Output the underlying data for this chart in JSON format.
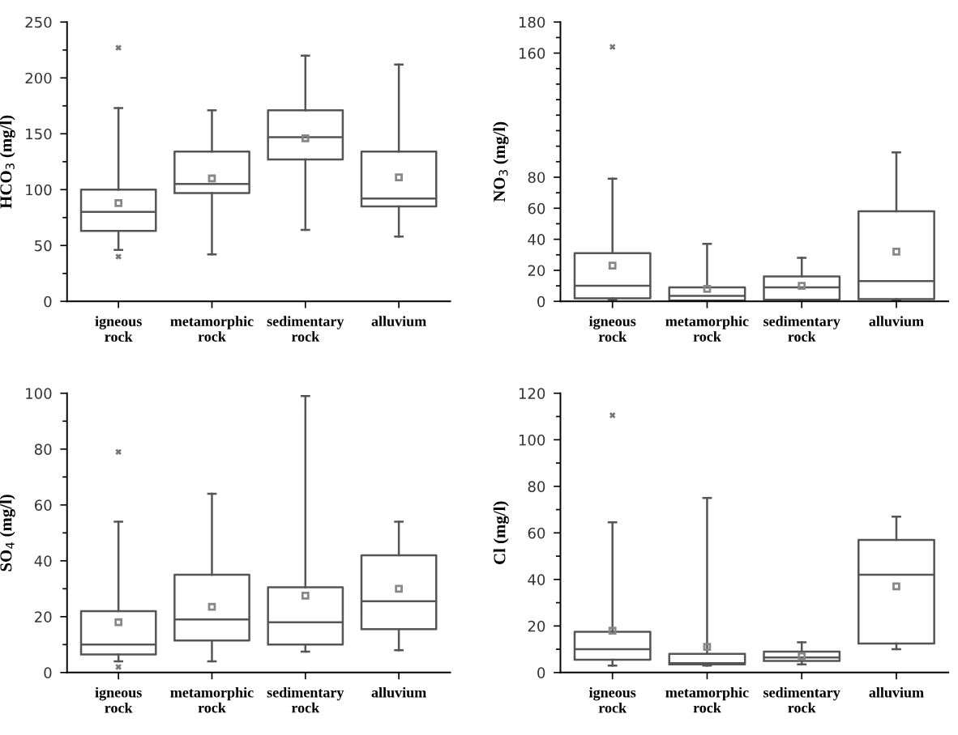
{
  "chart_data": [
    {
      "type": "box",
      "ylabel": "HCO$_{3}$ (mg/l)",
      "categories": [
        "igneous\nrock",
        "metamorphic\nrock",
        "sedimentary\nrock",
        "alluvium"
      ],
      "ylim": [
        0,
        250
      ],
      "yticks": [
        0,
        50,
        100,
        150,
        200,
        250
      ],
      "grid": false,
      "legend": false,
      "color": "#555555",
      "boxes": [
        {
          "low": 46,
          "q1": 63,
          "median": 80,
          "q3": 100,
          "high": 173,
          "mean": 88,
          "outliers": [
            227,
            40
          ]
        },
        {
          "low": 42,
          "q1": 97,
          "median": 105,
          "q3": 134,
          "high": 171,
          "mean": 110
        },
        {
          "low": 64,
          "q1": 127,
          "median": 147,
          "q3": 171,
          "high": 220,
          "mean": 146
        },
        {
          "low": 58,
          "q1": 85,
          "median": 92,
          "q3": 134,
          "high": 212,
          "mean": 111
        }
      ]
    },
    {
      "type": "box",
      "ylabel": "NO$_{3}$ (mg/l)",
      "categories": [
        "igneous\nrock",
        "metamorphic\nrock",
        "sedimentary\nrock",
        "alluvium"
      ],
      "ylim": [
        0,
        180
      ],
      "yticks": [
        0,
        20,
        40,
        60,
        80,
        160,
        180
      ],
      "grid": false,
      "legend": false,
      "color": "#555555",
      "boxes": [
        {
          "low": 1,
          "q1": 2,
          "median": 10,
          "q3": 31,
          "high": 79,
          "mean": 23,
          "outliers": [
            164
          ]
        },
        {
          "low": 0,
          "q1": 0.5,
          "median": 3.5,
          "q3": 9,
          "high": 37,
          "mean": 8
        },
        {
          "low": 1,
          "q1": 1,
          "median": 9,
          "q3": 16,
          "high": 28,
          "mean": 10
        },
        {
          "low": 0.5,
          "q1": 1.5,
          "median": 13,
          "q3": 58,
          "high": 96,
          "mean": 32
        }
      ]
    },
    {
      "type": "box",
      "ylabel": "SO$_{4}$ (mg/l)",
      "categories": [
        "igneous\nrock",
        "metamorphic\nrock",
        "sedimentary\nrock",
        "alluvium"
      ],
      "ylim": [
        0,
        100
      ],
      "yticks": [
        0,
        20,
        40,
        60,
        80,
        100
      ],
      "grid": false,
      "legend": false,
      "color": "#555555",
      "boxes": [
        {
          "low": 4,
          "q1": 6.5,
          "median": 10,
          "q3": 22,
          "high": 54,
          "mean": 18,
          "outliers": [
            79,
            2
          ]
        },
        {
          "low": 4,
          "q1": 11.5,
          "median": 19,
          "q3": 35,
          "high": 64,
          "mean": 23.5
        },
        {
          "low": 7.5,
          "q1": 10,
          "median": 18,
          "q3": 30.5,
          "high": 99,
          "mean": 27.5
        },
        {
          "low": 8,
          "q1": 15.5,
          "median": 25.5,
          "q3": 42,
          "high": 54,
          "mean": 30
        }
      ]
    },
    {
      "type": "box",
      "ylabel": "Cl (mg/l)",
      "categories": [
        "igneous\nrock",
        "metamorphic\nrock",
        "sedimentary\nrock",
        "alluvium"
      ],
      "ylim": [
        0,
        120
      ],
      "yticks": [
        0,
        20,
        40,
        60,
        80,
        100,
        120
      ],
      "grid": false,
      "legend": false,
      "color": "#555555",
      "boxes": [
        {
          "low": 3,
          "q1": 5.5,
          "median": 10,
          "q3": 17.5,
          "high": 64.5,
          "mean": 18,
          "outliers": [
            110.5
          ]
        },
        {
          "low": 3,
          "q1": 3.5,
          "median": 4,
          "q3": 8,
          "high": 75,
          "mean": 11
        },
        {
          "low": 3.5,
          "q1": 5,
          "median": 6.5,
          "q3": 9,
          "high": 13,
          "mean": 7
        },
        {
          "low": 10,
          "q1": 12.5,
          "median": 42,
          "q3": 57,
          "high": 67,
          "mean": 37
        }
      ]
    }
  ]
}
